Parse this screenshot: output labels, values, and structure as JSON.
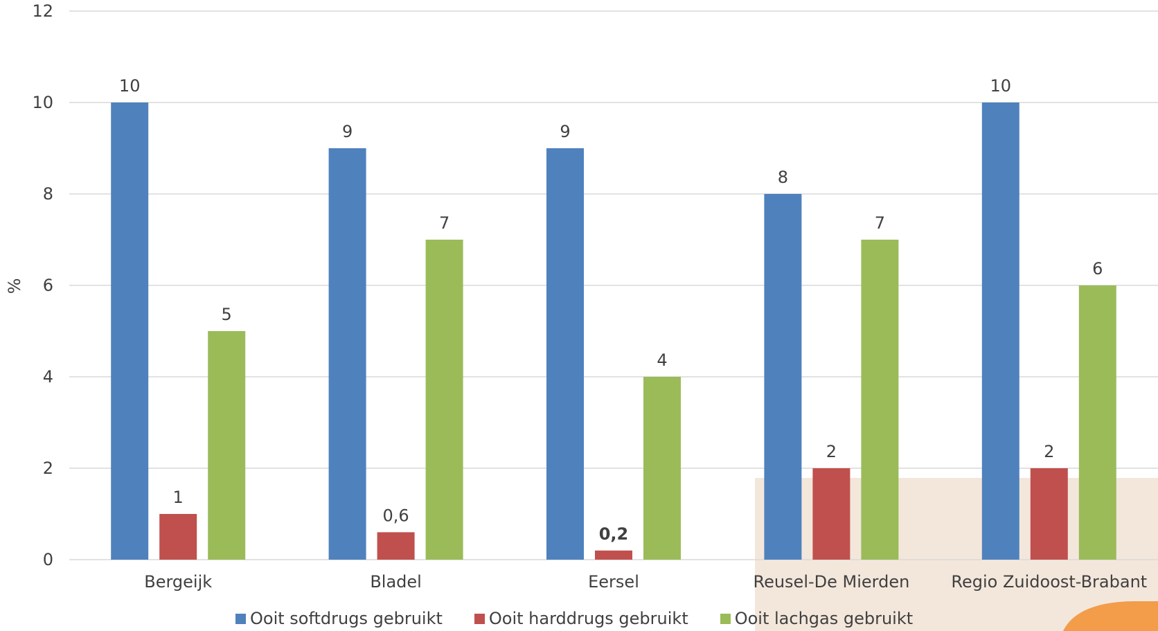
{
  "chart_data": {
    "type": "bar",
    "title": "",
    "xlabel": "",
    "ylabel": "%",
    "ylim": [
      0,
      12
    ],
    "yticks": [
      "0",
      "2",
      "4",
      "6",
      "8",
      "10",
      "12"
    ],
    "grid": true,
    "legend_position": "bottom",
    "categories": [
      "Bergeijk",
      "Bladel",
      "Eersel",
      "Reusel-De Mierden",
      "Regio Zuidoost-Brabant"
    ],
    "series": [
      {
        "name": "Ooit softdrugs gebruikt",
        "color": "#4f81bd",
        "values": [
          10,
          9,
          9,
          8,
          10
        ],
        "labels": [
          "10",
          "9",
          "9",
          "8",
          "10"
        ]
      },
      {
        "name": "Ooit harddrugs gebruikt",
        "color": "#c0504d",
        "values": [
          1,
          0.6,
          0.2,
          2,
          2
        ],
        "labels": [
          "1",
          "0,6",
          "0,2",
          "2",
          "2"
        ]
      },
      {
        "name": "Ooit lachgas gebruikt",
        "color": "#9bbb59",
        "values": [
          5,
          7,
          4,
          7,
          6
        ],
        "labels": [
          "5",
          "7",
          "4",
          "7",
          "6"
        ]
      }
    ]
  }
}
